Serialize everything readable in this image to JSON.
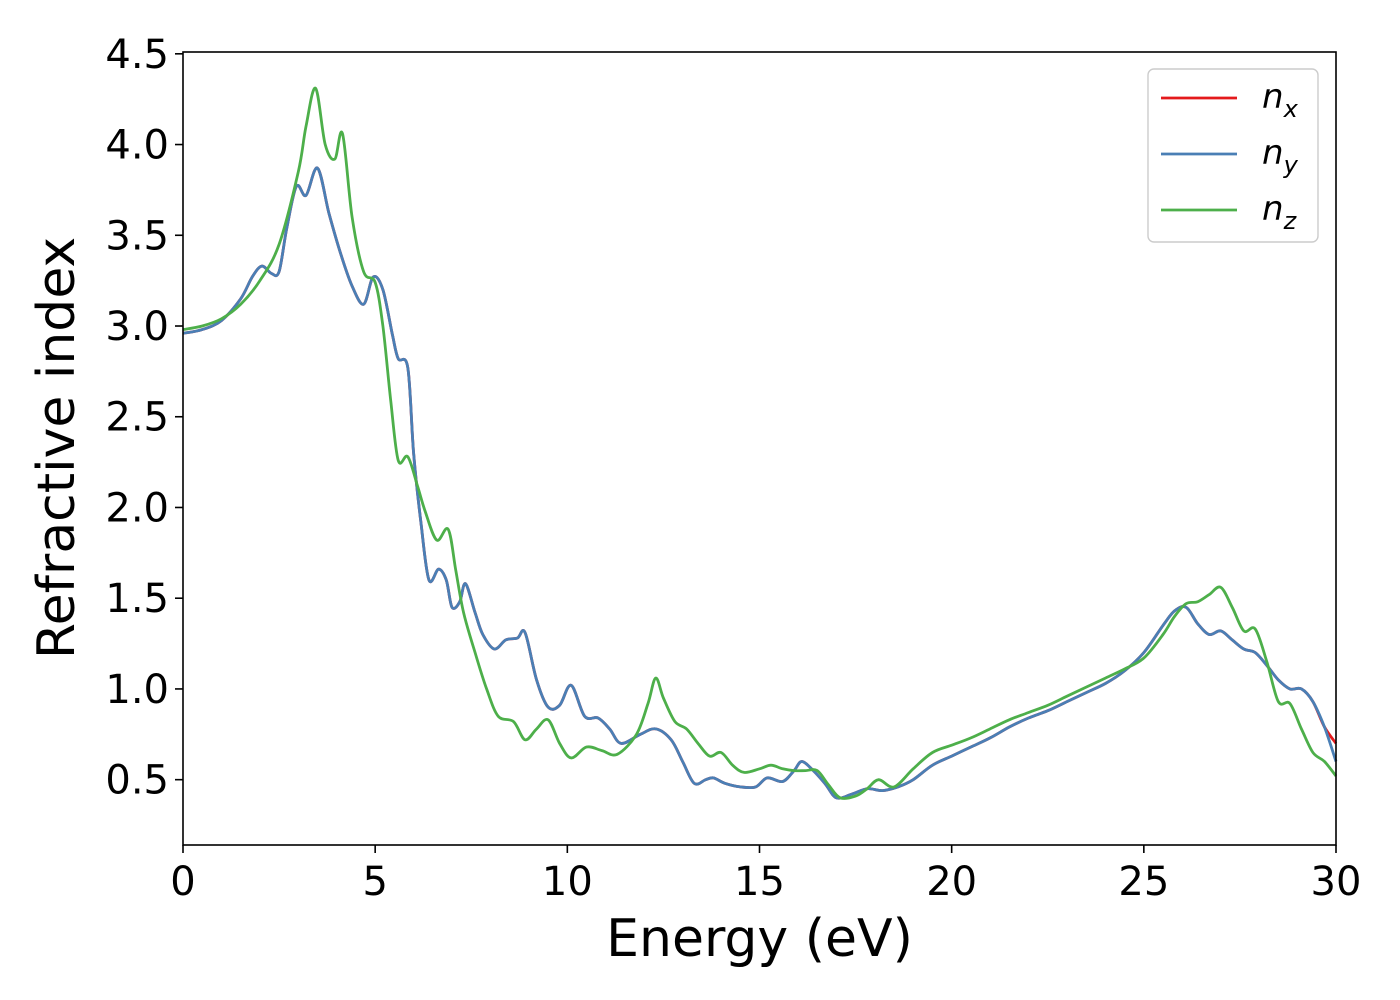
{
  "chart_data": {
    "type": "line",
    "xlabel": "Energy (eV)",
    "ylabel": "Refractive index",
    "xlim": [
      0,
      30
    ],
    "ylim": [
      0.14,
      4.51
    ],
    "xticks": [
      0,
      5,
      10,
      15,
      20,
      25,
      30
    ],
    "xtick_labels": [
      "0",
      "5",
      "10",
      "15",
      "20",
      "25",
      "30"
    ],
    "yticks": [
      0.5,
      1.0,
      1.5,
      2.0,
      2.5,
      3.0,
      3.5,
      4.0,
      4.5
    ],
    "ytick_labels": [
      "0.5",
      "1.0",
      "1.5",
      "2.0",
      "2.5",
      "3.0",
      "3.5",
      "4.0",
      "4.5"
    ],
    "grid": false,
    "legend_position": "top-right",
    "series": [
      {
        "name": "n",
        "subscript": "x",
        "color": "#e41a1c",
        "x": [
          0,
          0.5,
          1,
          1.5,
          1.8,
          2.05,
          2.3,
          2.5,
          2.7,
          2.95,
          3.2,
          3.5,
          3.8,
          4.1,
          4.4,
          4.7,
          4.95,
          5.2,
          5.45,
          5.6,
          5.85,
          6,
          6.2,
          6.4,
          6.65,
          6.85,
          7,
          7.2,
          7.35,
          7.6,
          7.8,
          8.1,
          8.4,
          8.7,
          8.9,
          9.2,
          9.5,
          9.8,
          10.1,
          10.45,
          10.8,
          11.1,
          11.4,
          11.9,
          12.3,
          12.7,
          13,
          13.3,
          13.6,
          13.8,
          14.1,
          14.5,
          14.9,
          15.2,
          15.6,
          15.9,
          16.1,
          16.4,
          16.7,
          17,
          17.4,
          17.8,
          18.2,
          18.6,
          19,
          19.5,
          20,
          20.5,
          21,
          21.5,
          22,
          22.5,
          23,
          23.5,
          24,
          24.5,
          25,
          25.5,
          25.8,
          26.1,
          26.4,
          26.7,
          27,
          27.3,
          27.6,
          27.9,
          28.2,
          28.5,
          28.8,
          29.1,
          29.4,
          29.7,
          30
        ],
        "y": [
          2.96,
          2.98,
          3.03,
          3.15,
          3.27,
          3.33,
          3.29,
          3.3,
          3.54,
          3.77,
          3.72,
          3.87,
          3.62,
          3.4,
          3.22,
          3.12,
          3.27,
          3.2,
          2.95,
          2.82,
          2.77,
          2.3,
          1.9,
          1.6,
          1.66,
          1.6,
          1.45,
          1.48,
          1.58,
          1.42,
          1.3,
          1.22,
          1.27,
          1.28,
          1.31,
          1.05,
          0.9,
          0.91,
          1.02,
          0.85,
          0.84,
          0.78,
          0.7,
          0.75,
          0.78,
          0.72,
          0.6,
          0.48,
          0.5,
          0.51,
          0.48,
          0.46,
          0.46,
          0.51,
          0.49,
          0.55,
          0.6,
          0.55,
          0.48,
          0.4,
          0.42,
          0.45,
          0.44,
          0.46,
          0.5,
          0.58,
          0.63,
          0.68,
          0.73,
          0.79,
          0.84,
          0.88,
          0.93,
          0.98,
          1.03,
          1.1,
          1.2,
          1.35,
          1.43,
          1.45,
          1.36,
          1.3,
          1.32,
          1.27,
          1.22,
          1.2,
          1.13,
          1.05,
          1.0,
          1.0,
          0.93,
          0.79,
          0.7
        ],
        "note_hidden": false
      },
      {
        "name": "n",
        "subscript": "y",
        "color": "#4a7fb5",
        "x": [
          0,
          0.5,
          1,
          1.5,
          1.8,
          2.05,
          2.3,
          2.5,
          2.7,
          2.95,
          3.2,
          3.5,
          3.8,
          4.1,
          4.4,
          4.7,
          4.95,
          5.2,
          5.45,
          5.6,
          5.85,
          6,
          6.2,
          6.4,
          6.65,
          6.85,
          7,
          7.2,
          7.35,
          7.6,
          7.8,
          8.1,
          8.4,
          8.7,
          8.9,
          9.2,
          9.5,
          9.8,
          10.1,
          10.45,
          10.8,
          11.1,
          11.4,
          11.9,
          12.3,
          12.7,
          13,
          13.3,
          13.6,
          13.8,
          14.1,
          14.5,
          14.9,
          15.2,
          15.6,
          15.9,
          16.1,
          16.4,
          16.7,
          17,
          17.4,
          17.8,
          18.2,
          18.6,
          19,
          19.5,
          20,
          20.5,
          21,
          21.5,
          22,
          22.5,
          23,
          23.5,
          24,
          24.5,
          25,
          25.5,
          25.8,
          26.1,
          26.4,
          26.7,
          27,
          27.3,
          27.6,
          27.9,
          28.2,
          28.5,
          28.8,
          29.1,
          29.4,
          29.7,
          30
        ],
        "y": [
          2.96,
          2.98,
          3.03,
          3.15,
          3.27,
          3.33,
          3.29,
          3.3,
          3.54,
          3.77,
          3.72,
          3.87,
          3.62,
          3.4,
          3.22,
          3.12,
          3.27,
          3.2,
          2.95,
          2.82,
          2.77,
          2.3,
          1.9,
          1.6,
          1.66,
          1.6,
          1.45,
          1.48,
          1.58,
          1.42,
          1.3,
          1.22,
          1.27,
          1.28,
          1.31,
          1.05,
          0.9,
          0.91,
          1.02,
          0.85,
          0.84,
          0.78,
          0.7,
          0.75,
          0.78,
          0.72,
          0.6,
          0.48,
          0.5,
          0.51,
          0.48,
          0.46,
          0.46,
          0.51,
          0.49,
          0.55,
          0.6,
          0.55,
          0.48,
          0.4,
          0.42,
          0.45,
          0.44,
          0.46,
          0.5,
          0.58,
          0.63,
          0.68,
          0.73,
          0.79,
          0.84,
          0.88,
          0.93,
          0.98,
          1.03,
          1.1,
          1.2,
          1.35,
          1.43,
          1.45,
          1.36,
          1.3,
          1.32,
          1.27,
          1.22,
          1.2,
          1.13,
          1.05,
          1.0,
          1.0,
          0.93,
          0.79,
          0.6
        ]
      },
      {
        "name": "n",
        "subscript": "z",
        "color": "#4daf4a",
        "x": [
          0,
          0.5,
          1,
          1.5,
          2,
          2.5,
          3,
          3.2,
          3.45,
          3.7,
          3.95,
          4.15,
          4.4,
          4.7,
          5,
          5.2,
          5.4,
          5.6,
          5.85,
          6.1,
          6.3,
          6.6,
          6.9,
          7.1,
          7.3,
          7.6,
          7.9,
          8.2,
          8.6,
          8.9,
          9.2,
          9.5,
          9.8,
          10.1,
          10.5,
          10.9,
          11.3,
          11.8,
          12.1,
          12.3,
          12.5,
          12.8,
          13.1,
          13.4,
          13.7,
          14,
          14.3,
          14.6,
          15,
          15.3,
          15.6,
          15.9,
          16.2,
          16.5,
          16.8,
          17.1,
          17.5,
          17.8,
          18.1,
          18.5,
          19,
          19.5,
          20,
          20.5,
          21,
          21.5,
          22,
          22.5,
          23,
          23.5,
          24,
          24.5,
          25,
          25.5,
          25.8,
          26.1,
          26.4,
          26.7,
          27,
          27.3,
          27.6,
          27.9,
          28.2,
          28.5,
          28.8,
          29.1,
          29.4,
          29.7,
          30
        ],
        "y": [
          2.98,
          3.0,
          3.04,
          3.12,
          3.25,
          3.45,
          3.85,
          4.1,
          4.31,
          4.0,
          3.92,
          4.06,
          3.6,
          3.3,
          3.24,
          3.0,
          2.6,
          2.26,
          2.28,
          2.12,
          1.98,
          1.82,
          1.88,
          1.65,
          1.42,
          1.2,
          1.0,
          0.85,
          0.82,
          0.72,
          0.78,
          0.83,
          0.7,
          0.62,
          0.68,
          0.66,
          0.64,
          0.75,
          0.92,
          1.06,
          0.95,
          0.82,
          0.78,
          0.7,
          0.63,
          0.65,
          0.58,
          0.54,
          0.56,
          0.58,
          0.56,
          0.55,
          0.55,
          0.55,
          0.47,
          0.4,
          0.41,
          0.45,
          0.5,
          0.46,
          0.56,
          0.65,
          0.69,
          0.73,
          0.78,
          0.83,
          0.87,
          0.91,
          0.96,
          1.01,
          1.06,
          1.11,
          1.17,
          1.3,
          1.4,
          1.47,
          1.48,
          1.52,
          1.56,
          1.45,
          1.32,
          1.33,
          1.15,
          0.93,
          0.92,
          0.78,
          0.65,
          0.6,
          0.52
        ]
      }
    ]
  }
}
